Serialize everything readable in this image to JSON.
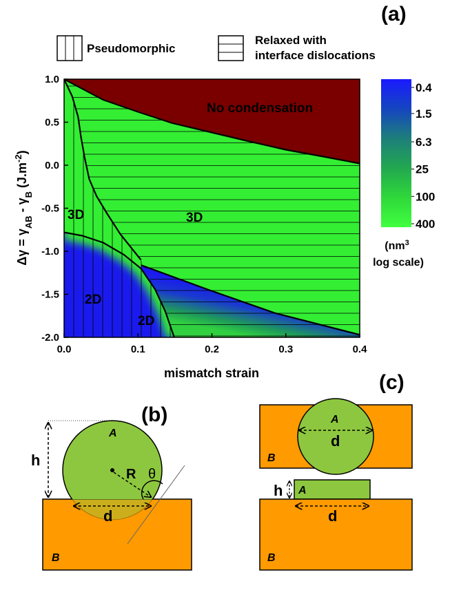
{
  "chart_data": {
    "type": "phase-diagram",
    "panel_tag": "(a)",
    "xlabel": "mismatch strain",
    "ylabel_parts": [
      "Δγ = γ",
      "AB",
      " - γ",
      "B",
      " (J.m",
      "-2",
      ")"
    ],
    "xlim": [
      0,
      0.4
    ],
    "ylim": [
      -2,
      1
    ],
    "xticks": [
      {
        "value": 0,
        "label": "0.0"
      },
      0.1,
      0.2,
      0.3,
      0.4
    ],
    "yticks": [
      {
        "value": 1,
        "label": "1.0"
      },
      0.5,
      {
        "value": 0,
        "label": "0.0"
      },
      -0.5,
      {
        "value": -1,
        "label": "-1.0"
      },
      -1.5,
      {
        "value": -2,
        "label": "-2.0"
      }
    ],
    "legend": {
      "pseudomorphic": "Pseudomorphic",
      "relaxed": [
        "Relaxed with",
        "interface dislocations"
      ]
    },
    "annotations": {
      "no_condensation": "No condensation",
      "pseudo_3d": "3D",
      "relaxed_3d": "3D",
      "pseudo_2d": "2D",
      "relaxed_2d": "2D"
    },
    "boundaries": [
      {
        "x": [
          0,
          0.053,
          0.1,
          0.146,
          0.2,
          0.249,
          0.3,
          0.351,
          0.4
        ],
        "y": [
          1.0,
          0.76,
          0.62,
          0.49,
          0.38,
          0.28,
          0.18,
          0.1,
          0.02
        ]
      },
      {
        "x": [
          0,
          0.011,
          0.019,
          0.023,
          0.028,
          0.034,
          0.044,
          0.058,
          0.076,
          0.104
        ],
        "y": [
          1.0,
          0.8,
          0.56,
          0.32,
          0.08,
          -0.16,
          -0.36,
          -0.56,
          -0.8,
          -1.1
        ]
      },
      {
        "x": [
          0,
          0.025,
          0.053,
          0.081,
          0.104,
          0.123,
          0.137,
          0.149
        ],
        "y": [
          -0.78,
          -0.82,
          -0.9,
          -1.04,
          -1.2,
          -1.44,
          -1.7,
          -2.0
        ]
      },
      {
        "x": [
          0.104,
          0.193,
          0.286,
          0.4
        ],
        "y": [
          -1.16,
          -1.44,
          -1.72,
          -1.97
        ]
      }
    ],
    "colors": {
      "fill": "#33ee33",
      "no_condensation": "#7a0000",
      "blue": "#1a1aee"
    },
    "colorbar": {
      "scale": "log",
      "clim": [
        0.4,
        400
      ],
      "ticks": [
        0.4,
        1.5,
        6.3,
        25,
        100,
        400
      ],
      "label": [
        "(nm",
        "3",
        "log scale)"
      ]
    }
  },
  "panel_b": {
    "tag": "(b)",
    "A": "A",
    "R": "R",
    "theta": "θ",
    "h": "h",
    "d": "d",
    "B": "B"
  },
  "panel_c": {
    "tag": "(c)",
    "top": {
      "A": "A",
      "d": "d",
      "B": "B"
    },
    "bottom": {
      "h": "h",
      "A": "A",
      "d": "d",
      "B": "B"
    }
  }
}
